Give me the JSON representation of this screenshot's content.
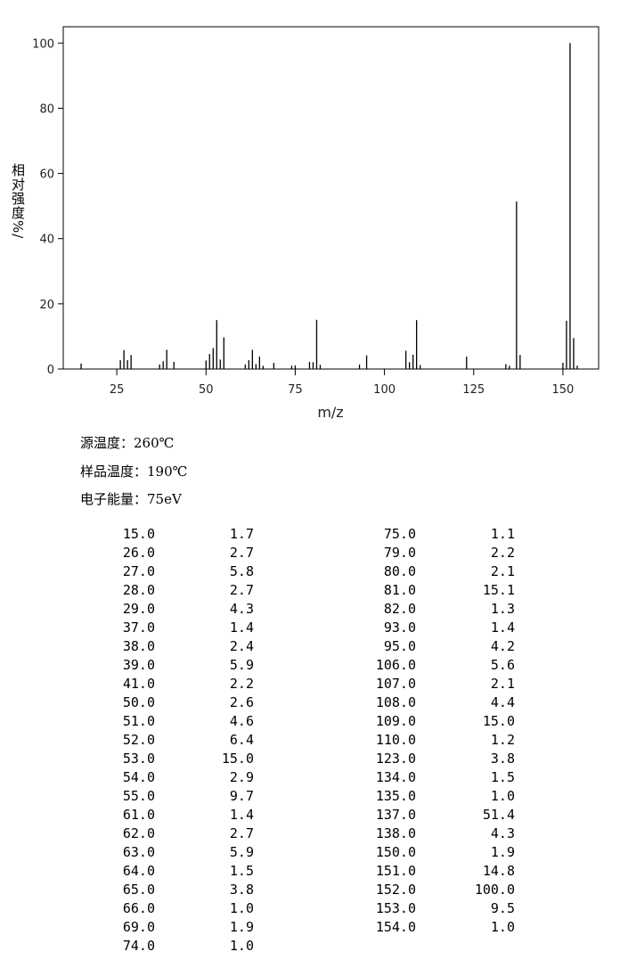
{
  "chart_data": {
    "type": "bar",
    "y_label": "相对强度%/",
    "x_label": "m/z",
    "xlim": [
      10,
      160
    ],
    "xticks": [
      25,
      50,
      75,
      100,
      125,
      150
    ],
    "ylim": [
      0,
      105
    ],
    "yticks": [
      0,
      20,
      40,
      60,
      80,
      100
    ],
    "color": "#000000",
    "x": [
      15,
      26,
      27,
      28,
      29,
      37,
      38,
      39,
      41,
      50,
      51,
      52,
      53,
      54,
      55,
      61,
      62,
      63,
      64,
      65,
      66,
      69,
      74,
      75,
      79,
      80,
      81,
      82,
      93,
      95,
      106,
      107,
      108,
      109,
      110,
      123,
      134,
      135,
      137,
      138,
      150,
      151,
      152,
      153,
      154
    ],
    "values": [
      1.7,
      2.7,
      5.8,
      2.7,
      4.3,
      1.4,
      2.4,
      5.9,
      2.2,
      2.6,
      4.6,
      6.4,
      15.0,
      2.9,
      9.7,
      1.4,
      2.7,
      5.9,
      1.5,
      3.8,
      1.0,
      1.9,
      1.0,
      1.1,
      2.2,
      2.1,
      15.1,
      1.3,
      1.4,
      4.2,
      5.6,
      2.1,
      4.4,
      15.0,
      1.2,
      3.8,
      1.5,
      1.0,
      51.4,
      4.3,
      1.9,
      14.8,
      100.0,
      9.5,
      1.0
    ]
  },
  "conditions": [
    "源温度：260℃",
    "样品温度：190℃",
    "电子能量：75eV"
  ],
  "peak_table": {
    "left": [
      [
        "15.0",
        "1.7"
      ],
      [
        "26.0",
        "2.7"
      ],
      [
        "27.0",
        "5.8"
      ],
      [
        "28.0",
        "2.7"
      ],
      [
        "29.0",
        "4.3"
      ],
      [
        "37.0",
        "1.4"
      ],
      [
        "38.0",
        "2.4"
      ],
      [
        "39.0",
        "5.9"
      ],
      [
        "41.0",
        "2.2"
      ],
      [
        "50.0",
        "2.6"
      ],
      [
        "51.0",
        "4.6"
      ],
      [
        "52.0",
        "6.4"
      ],
      [
        "53.0",
        "15.0"
      ],
      [
        "54.0",
        "2.9"
      ],
      [
        "55.0",
        "9.7"
      ],
      [
        "61.0",
        "1.4"
      ],
      [
        "62.0",
        "2.7"
      ],
      [
        "63.0",
        "5.9"
      ],
      [
        "64.0",
        "1.5"
      ],
      [
        "65.0",
        "3.8"
      ],
      [
        "66.0",
        "1.0"
      ],
      [
        "69.0",
        "1.9"
      ],
      [
        "74.0",
        "1.0"
      ]
    ],
    "right": [
      [
        "75.0",
        "1.1"
      ],
      [
        "79.0",
        "2.2"
      ],
      [
        "80.0",
        "2.1"
      ],
      [
        "81.0",
        "15.1"
      ],
      [
        "82.0",
        "1.3"
      ],
      [
        "93.0",
        "1.4"
      ],
      [
        "95.0",
        "4.2"
      ],
      [
        "106.0",
        "5.6"
      ],
      [
        "107.0",
        "2.1"
      ],
      [
        "108.0",
        "4.4"
      ],
      [
        "109.0",
        "15.0"
      ],
      [
        "110.0",
        "1.2"
      ],
      [
        "123.0",
        "3.8"
      ],
      [
        "134.0",
        "1.5"
      ],
      [
        "135.0",
        "1.0"
      ],
      [
        "137.0",
        "51.4"
      ],
      [
        "138.0",
        "4.3"
      ],
      [
        "150.0",
        "1.9"
      ],
      [
        "151.0",
        "14.8"
      ],
      [
        "152.0",
        "100.0"
      ],
      [
        "153.0",
        "9.5"
      ],
      [
        "154.0",
        "1.0"
      ]
    ]
  }
}
